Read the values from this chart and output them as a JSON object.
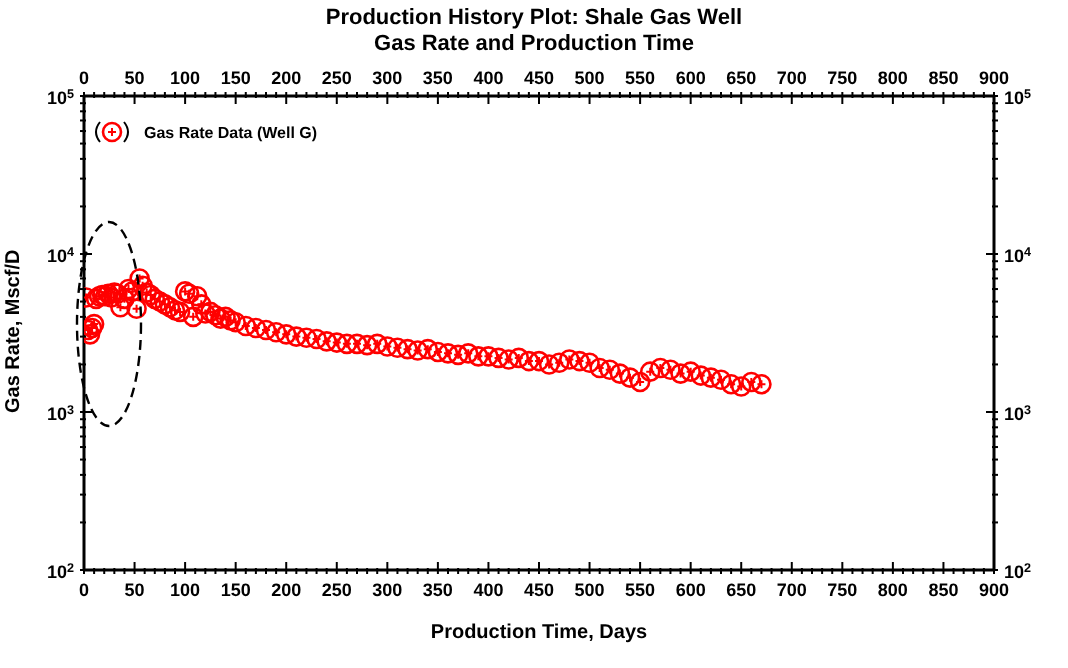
{
  "chart_data": {
    "type": "scatter",
    "title": "Production History Plot: Shale Gas Well",
    "subtitle": "Gas Rate and Production Time",
    "xlabel": "Production Time, Days",
    "ylabel": "Gas Rate, Mscf/D",
    "x": [
      2,
      4,
      6,
      8,
      10,
      12,
      15,
      18,
      21,
      24,
      27,
      30,
      33,
      36,
      40,
      44,
      48,
      52,
      55,
      58,
      62,
      66,
      70,
      75,
      80,
      85,
      90,
      95,
      100,
      104,
      108,
      112,
      116,
      120,
      125,
      130,
      135,
      140,
      145,
      150,
      160,
      170,
      180,
      190,
      200,
      210,
      220,
      230,
      240,
      250,
      260,
      270,
      280,
      290,
      300,
      310,
      320,
      330,
      340,
      350,
      360,
      370,
      380,
      390,
      400,
      410,
      420,
      430,
      440,
      450,
      460,
      470,
      480,
      490,
      500,
      510,
      520,
      530,
      540,
      550,
      560,
      570,
      580,
      590,
      600,
      610,
      620,
      630,
      640,
      650,
      660,
      670
    ],
    "series": [
      {
        "name": "Gas Rate Data (Well G)",
        "color": "#ff0000",
        "values": [
          5300,
          3300,
          3100,
          3400,
          3600,
          5200,
          5400,
          5500,
          5400,
          5600,
          5300,
          5700,
          5600,
          4600,
          5200,
          6000,
          5800,
          4500,
          7000,
          6300,
          5700,
          5500,
          5200,
          5000,
          4800,
          4600,
          4400,
          4300,
          5800,
          5600,
          4000,
          5400,
          4800,
          4200,
          4300,
          4100,
          3900,
          4000,
          3800,
          3700,
          3500,
          3400,
          3300,
          3200,
          3100,
          3000,
          2950,
          2900,
          2800,
          2750,
          2700,
          2700,
          2650,
          2700,
          2600,
          2550,
          2500,
          2450,
          2500,
          2400,
          2350,
          2300,
          2350,
          2250,
          2250,
          2200,
          2150,
          2200,
          2100,
          2100,
          2000,
          2050,
          2150,
          2100,
          2050,
          1900,
          1850,
          1750,
          1650,
          1550,
          1800,
          1900,
          1850,
          1750,
          1800,
          1700,
          1650,
          1600,
          1500,
          1450,
          1550,
          1500
        ]
      }
    ],
    "marker": "circle",
    "log": "y",
    "legend": "top left",
    "grid": false,
    "xlim": [
      0,
      900
    ],
    "x2lim": [
      0,
      900
    ],
    "ylim": [
      100,
      100000
    ],
    "xticks": [
      0,
      {
        "value": 10,
        "label": null
      },
      {
        "value": 20,
        "label": null
      },
      {
        "value": 30,
        "label": null
      },
      {
        "value": 40,
        "label": null
      },
      50,
      {
        "value": 60,
        "label": null
      },
      {
        "value": 70,
        "label": null
      },
      {
        "value": 80,
        "label": null
      },
      {
        "value": 90,
        "label": null
      },
      100,
      {
        "value": 110,
        "label": null
      },
      {
        "value": 120,
        "label": null
      },
      {
        "value": 130,
        "label": null
      },
      {
        "value": 140,
        "label": null
      },
      150,
      {
        "value": 160,
        "label": null
      },
      {
        "value": 170,
        "label": null
      },
      {
        "value": 180,
        "label": null
      },
      {
        "value": 190,
        "label": null
      },
      200,
      {
        "value": 210,
        "label": null
      },
      {
        "value": 220,
        "label": null
      },
      {
        "value": 230,
        "label": null
      },
      {
        "value": 240,
        "label": null
      },
      250,
      {
        "value": 260,
        "label": null
      },
      {
        "value": 270,
        "label": null
      },
      {
        "value": 280,
        "label": null
      },
      {
        "value": 290,
        "label": null
      },
      300,
      {
        "value": 310,
        "label": null
      },
      {
        "value": 320,
        "label": null
      },
      {
        "value": 330,
        "label": null
      },
      {
        "value": 340,
        "label": null
      },
      350,
      {
        "value": 360,
        "label": null
      },
      {
        "value": 370,
        "label": null
      },
      {
        "value": 380,
        "label": null
      },
      {
        "value": 390,
        "label": null
      },
      400,
      {
        "value": 410,
        "label": null
      },
      {
        "value": 420,
        "label": null
      },
      {
        "value": 430,
        "label": null
      },
      {
        "value": 440,
        "label": null
      },
      450,
      {
        "value": 460,
        "label": null
      },
      {
        "value": 470,
        "label": null
      },
      {
        "value": 480,
        "label": null
      },
      {
        "value": 490,
        "label": null
      },
      500,
      {
        "value": 510,
        "label": null
      },
      {
        "value": 520,
        "label": null
      },
      {
        "value": 530,
        "label": null
      },
      {
        "value": 540,
        "label": null
      },
      550,
      {
        "value": 560,
        "label": null
      },
      {
        "value": 570,
        "label": null
      },
      {
        "value": 580,
        "label": null
      },
      {
        "value": 590,
        "label": null
      },
      600,
      {
        "value": 610,
        "label": null
      },
      {
        "value": 620,
        "label": null
      },
      {
        "value": 630,
        "label": null
      },
      {
        "value": 640,
        "label": null
      },
      650,
      {
        "value": 660,
        "label": null
      },
      {
        "value": 670,
        "label": null
      },
      {
        "value": 680,
        "label": null
      },
      {
        "value": 690,
        "label": null
      },
      700,
      {
        "value": 710,
        "label": null
      },
      {
        "value": 720,
        "label": null
      },
      {
        "value": 730,
        "label": null
      },
      {
        "value": 740,
        "label": null
      },
      750,
      {
        "value": 760,
        "label": null
      },
      {
        "value": 770,
        "label": null
      },
      {
        "value": 780,
        "label": null
      },
      {
        "value": 790,
        "label": null
      },
      800,
      {
        "value": 810,
        "label": null
      },
      {
        "value": 820,
        "label": null
      },
      {
        "value": 830,
        "label": null
      },
      {
        "value": 840,
        "label": null
      },
      850,
      {
        "value": 860,
        "label": null
      },
      {
        "value": 870,
        "label": null
      },
      {
        "value": 880,
        "label": null
      },
      {
        "value": 890,
        "label": null
      },
      900
    ],
    "x2ticks": [
      0,
      {
        "value": 10,
        "label": null
      },
      {
        "value": 20,
        "label": null
      },
      {
        "value": 30,
        "label": null
      },
      {
        "value": 40,
        "label": null
      },
      50,
      {
        "value": 60,
        "label": null
      },
      {
        "value": 70,
        "label": null
      },
      {
        "value": 80,
        "label": null
      },
      {
        "value": 90,
        "label": null
      },
      100,
      {
        "value": 110,
        "label": null
      },
      {
        "value": 120,
        "label": null
      },
      {
        "value": 130,
        "label": null
      },
      {
        "value": 140,
        "label": null
      },
      150,
      {
        "value": 160,
        "label": null
      },
      {
        "value": 170,
        "label": null
      },
      {
        "value": 180,
        "label": null
      },
      {
        "value": 190,
        "label": null
      },
      200,
      {
        "value": 210,
        "label": null
      },
      {
        "value": 220,
        "label": null
      },
      {
        "value": 230,
        "label": null
      },
      {
        "value": 240,
        "label": null
      },
      250,
      {
        "value": 260,
        "label": null
      },
      {
        "value": 270,
        "label": null
      },
      {
        "value": 280,
        "label": null
      },
      {
        "value": 290,
        "label": null
      },
      300,
      {
        "value": 310,
        "label": null
      },
      {
        "value": 320,
        "label": null
      },
      {
        "value": 330,
        "label": null
      },
      {
        "value": 340,
        "label": null
      },
      350,
      {
        "value": 360,
        "label": null
      },
      {
        "value": 370,
        "label": null
      },
      {
        "value": 380,
        "label": null
      },
      {
        "value": 390,
        "label": null
      },
      400,
      {
        "value": 410,
        "label": null
      },
      {
        "value": 420,
        "label": null
      },
      {
        "value": 430,
        "label": null
      },
      {
        "value": 440,
        "label": null
      },
      450,
      {
        "value": 460,
        "label": null
      },
      {
        "value": 470,
        "label": null
      },
      {
        "value": 480,
        "label": null
      },
      {
        "value": 490,
        "label": null
      },
      500,
      {
        "value": 510,
        "label": null
      },
      {
        "value": 520,
        "label": null
      },
      {
        "value": 530,
        "label": null
      },
      {
        "value": 540,
        "label": null
      },
      550,
      {
        "value": 560,
        "label": null
      },
      {
        "value": 570,
        "label": null
      },
      {
        "value": 580,
        "label": null
      },
      {
        "value": 590,
        "label": null
      },
      600,
      {
        "value": 610,
        "label": null
      },
      {
        "value": 620,
        "label": null
      },
      {
        "value": 630,
        "label": null
      },
      {
        "value": 640,
        "label": null
      },
      650,
      {
        "value": 660,
        "label": null
      },
      {
        "value": 670,
        "label": null
      },
      {
        "value": 680,
        "label": null
      },
      {
        "value": 690,
        "label": null
      },
      700,
      {
        "value": 710,
        "label": null
      },
      {
        "value": 720,
        "label": null
      },
      {
        "value": 730,
        "label": null
      },
      {
        "value": 740,
        "label": null
      },
      750,
      {
        "value": 760,
        "label": null
      },
      {
        "value": 770,
        "label": null
      },
      {
        "value": 780,
        "label": null
      },
      {
        "value": 790,
        "label": null
      },
      800,
      {
        "value": 810,
        "label": null
      },
      {
        "value": 820,
        "label": null
      },
      {
        "value": 830,
        "label": null
      },
      {
        "value": 840,
        "label": null
      },
      850,
      {
        "value": 860,
        "label": null
      },
      {
        "value": 870,
        "label": null
      },
      {
        "value": 880,
        "label": null
      },
      {
        "value": 890,
        "label": null
      },
      900
    ],
    "yticks": [
      {
        "value": 100,
        "label": "10$^{2}$"
      },
      {
        "value": 200,
        "label": null
      },
      {
        "value": 300,
        "label": null
      },
      {
        "value": 400,
        "label": null
      },
      {
        "value": 500,
        "label": null
      },
      {
        "value": 600,
        "label": null
      },
      {
        "value": 700,
        "label": null
      },
      {
        "value": 800,
        "label": null
      },
      {
        "value": 900,
        "label": null
      },
      {
        "value": 1000,
        "label": "10$^{3}$"
      },
      {
        "value": 2000,
        "label": null
      },
      {
        "value": 3000,
        "label": null
      },
      {
        "value": 4000,
        "label": null
      },
      {
        "value": 5000,
        "label": null
      },
      {
        "value": 6000,
        "label": null
      },
      {
        "value": 7000,
        "label": null
      },
      {
        "value": 8000,
        "label": null
      },
      {
        "value": 9000,
        "label": null
      },
      {
        "value": 10000,
        "label": "10$^{4}$"
      },
      {
        "value": 20000,
        "label": null
      },
      {
        "value": 30000,
        "label": null
      },
      {
        "value": 40000,
        "label": null
      },
      {
        "value": 50000,
        "label": null
      },
      {
        "value": 60000,
        "label": null
      },
      {
        "value": 70000,
        "label": null
      },
      {
        "value": 80000,
        "label": null
      },
      {
        "value": 90000,
        "label": null
      },
      {
        "value": 100000,
        "label": "10$^{5}$"
      }
    ]
  }
}
